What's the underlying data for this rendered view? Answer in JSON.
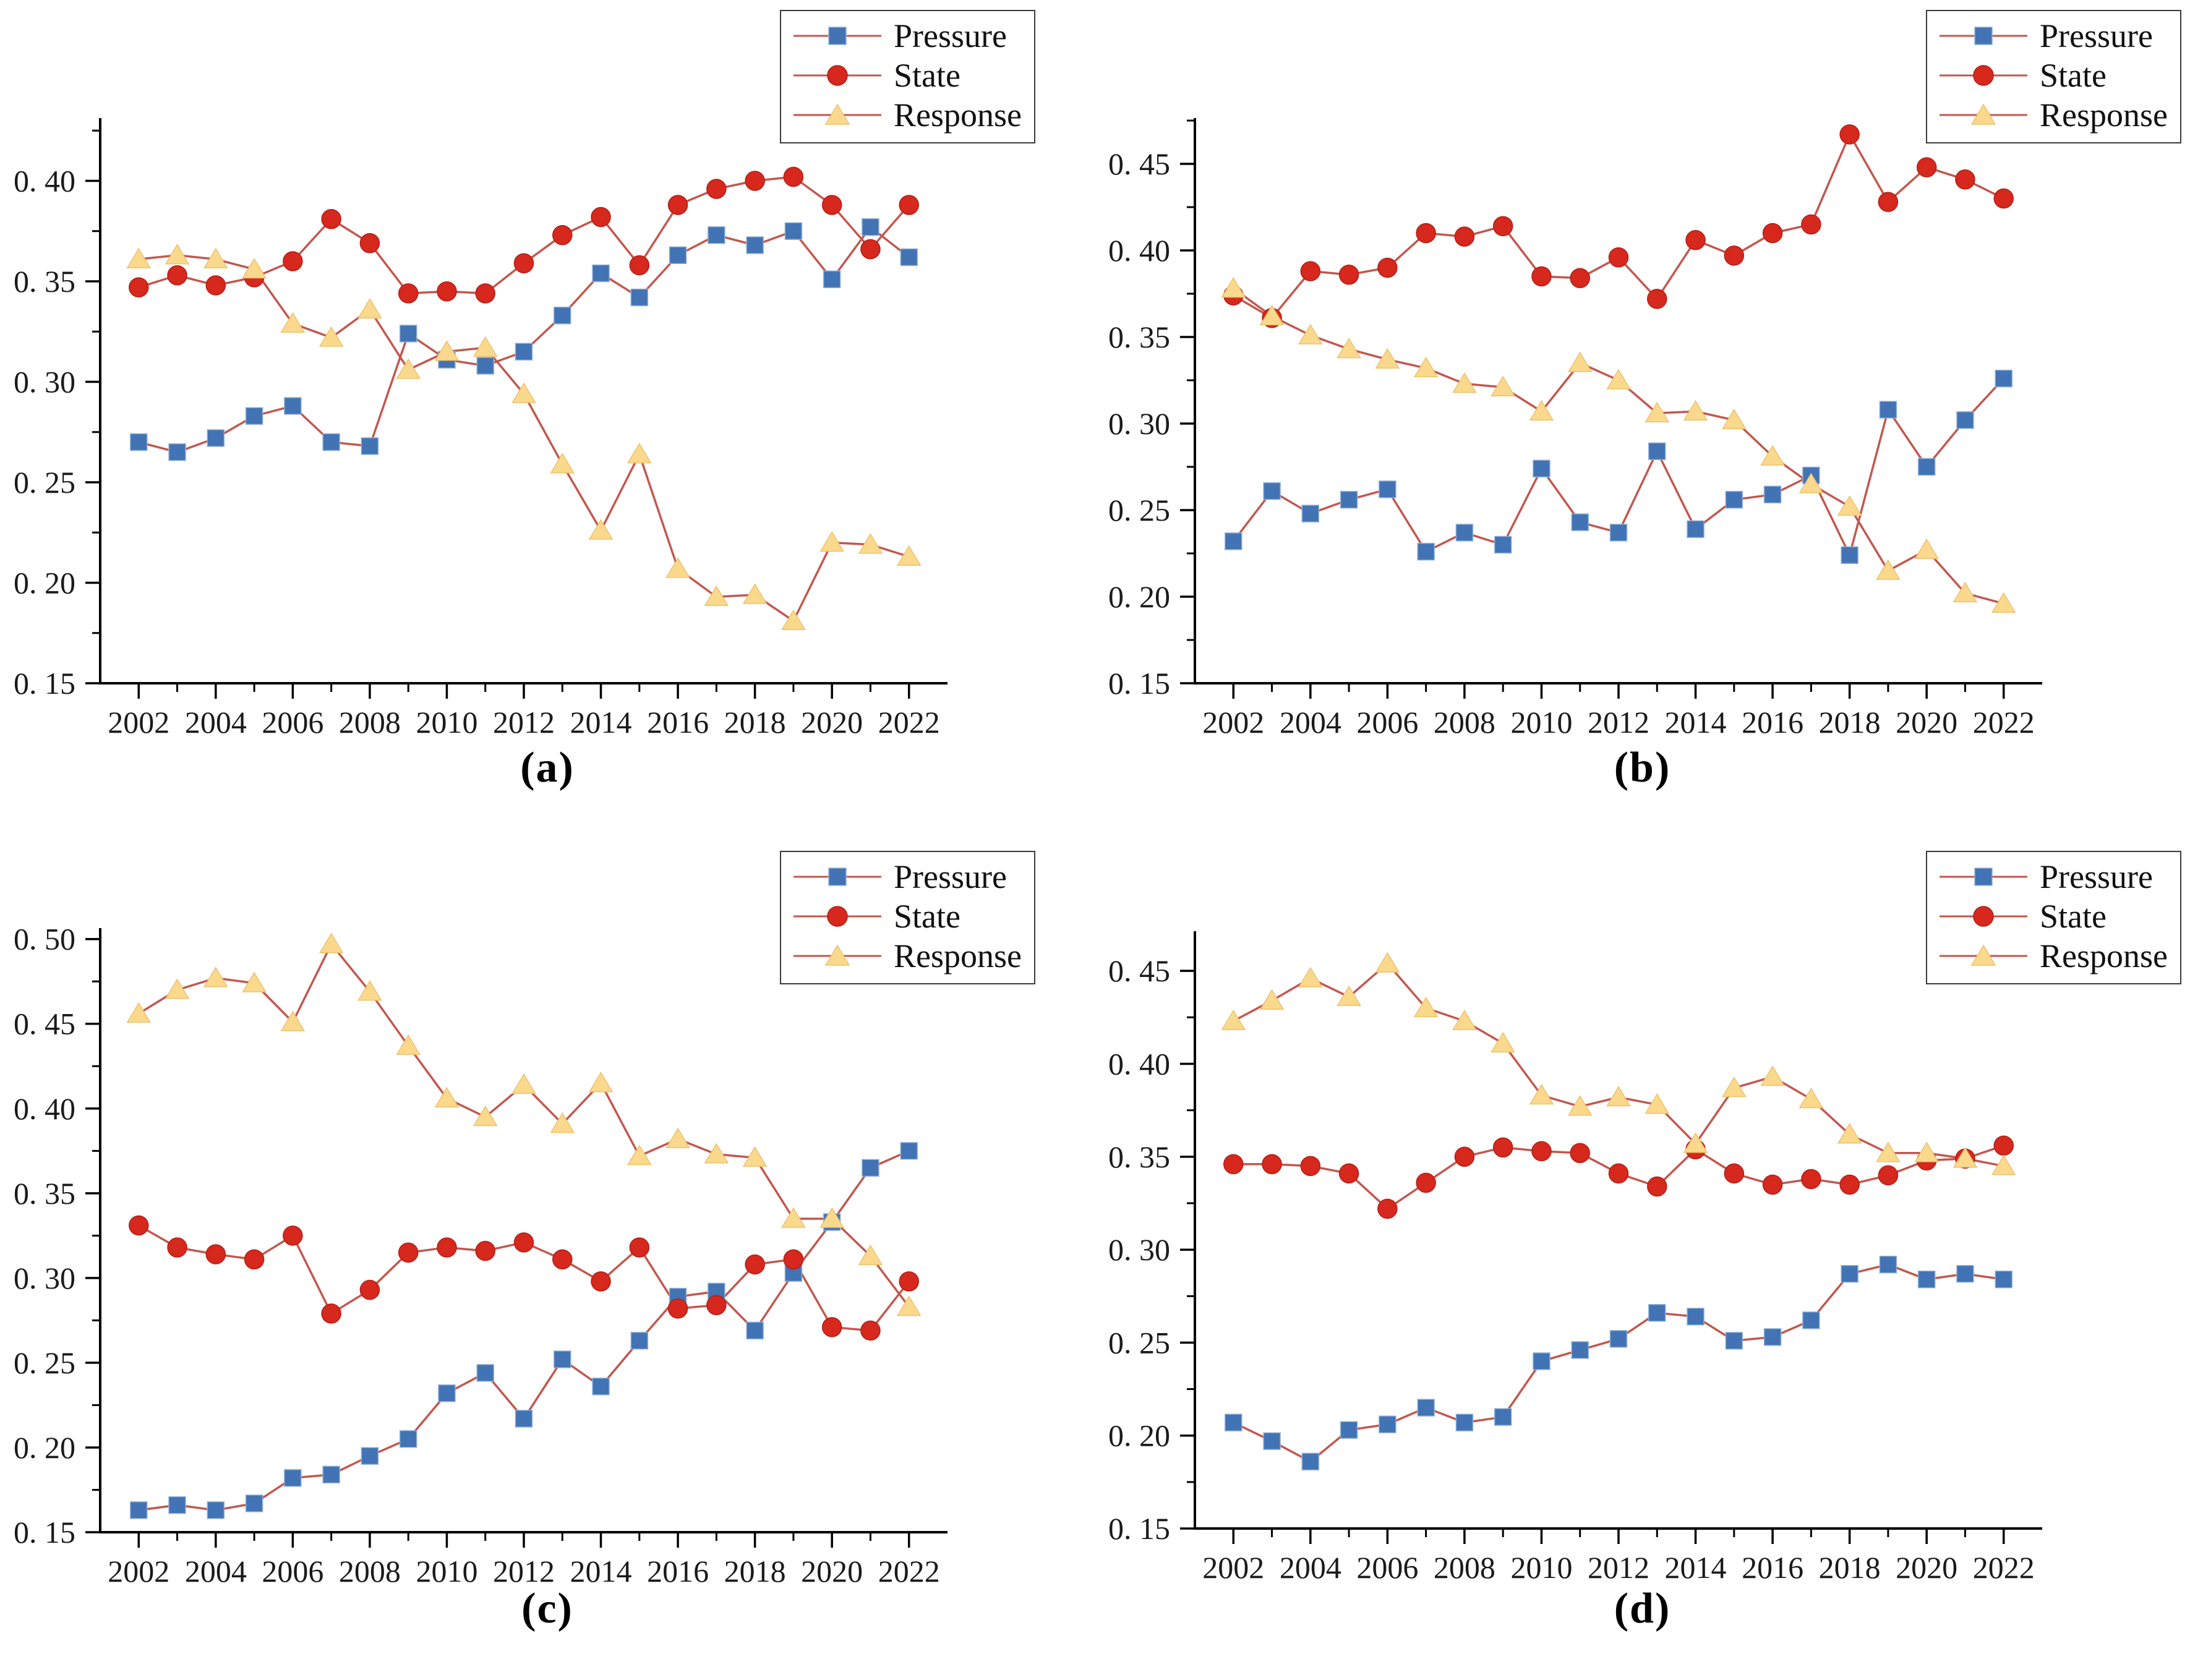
{
  "legend": {
    "items": [
      {
        "label": "Pressure",
        "marker": "square",
        "color": "#4273B4",
        "edge": "#8FAFD6"
      },
      {
        "label": "State",
        "marker": "circle",
        "color": "#D7281E",
        "edge": "#B21E16"
      },
      {
        "label": "Response",
        "marker": "triangle",
        "color": "#FAD98D",
        "edge": "#EDC26E"
      }
    ],
    "line_color": "#C2574E"
  },
  "chart_data": [
    {
      "id": "a",
      "caption": "(a)",
      "type": "line",
      "xlabel": "",
      "ylabel": "",
      "grid": false,
      "legend_position": "upper right",
      "x_years": [
        2002,
        2003,
        2004,
        2005,
        2006,
        2007,
        2008,
        2009,
        2010,
        2011,
        2012,
        2013,
        2014,
        2015,
        2016,
        2017,
        2018,
        2019,
        2020,
        2021,
        2022
      ],
      "xtick_labels": [
        "2002",
        "2004",
        "2006",
        "2008",
        "2010",
        "2012",
        "2014",
        "2016",
        "2018",
        "2020",
        "2022"
      ],
      "ylim": [
        0.15,
        0.43
      ],
      "yticks": [
        0.15,
        0.2,
        0.25,
        0.3,
        0.35,
        0.4
      ],
      "ytick_labels": [
        "0. 15",
        "0. 20",
        "0. 25",
        "0. 30",
        "0. 35",
        "0. 40"
      ],
      "series": [
        {
          "name": "Pressure",
          "marker": "square",
          "values": [
            0.27,
            0.265,
            0.272,
            0.283,
            0.288,
            0.27,
            0.268,
            0.324,
            0.311,
            0.308,
            0.315,
            0.333,
            0.354,
            0.342,
            0.363,
            0.373,
            0.368,
            0.375,
            0.351,
            0.377,
            0.362
          ]
        },
        {
          "name": "State",
          "marker": "circle",
          "values": [
            0.347,
            0.353,
            0.348,
            0.352,
            0.36,
            0.381,
            0.369,
            0.344,
            0.345,
            0.344,
            0.359,
            0.373,
            0.382,
            0.358,
            0.388,
            0.396,
            0.4,
            0.402,
            0.388,
            0.366,
            0.388
          ]
        },
        {
          "name": "Response",
          "marker": "triangle",
          "values": [
            0.361,
            0.363,
            0.361,
            0.356,
            0.329,
            0.322,
            0.336,
            0.306,
            0.315,
            0.317,
            0.294,
            0.259,
            0.226,
            0.264,
            0.207,
            0.193,
            0.194,
            0.181,
            0.22,
            0.219,
            0.213
          ]
        }
      ]
    },
    {
      "id": "b",
      "caption": "(b)",
      "type": "line",
      "xlabel": "",
      "ylabel": "",
      "grid": false,
      "legend_position": "upper right",
      "x_years": [
        2002,
        2003,
        2004,
        2005,
        2006,
        2007,
        2008,
        2009,
        2010,
        2011,
        2012,
        2013,
        2014,
        2015,
        2016,
        2017,
        2018,
        2019,
        2020,
        2021,
        2022
      ],
      "xtick_labels": [
        "2002",
        "2004",
        "2006",
        "2008",
        "2010",
        "2012",
        "2014",
        "2016",
        "2018",
        "2020",
        "2022"
      ],
      "ylim": [
        0.15,
        0.475
      ],
      "yticks": [
        0.15,
        0.2,
        0.25,
        0.3,
        0.35,
        0.4,
        0.45
      ],
      "ytick_labels": [
        "0. 15",
        "0. 20",
        "0. 25",
        "0. 30",
        "0. 35",
        "0. 40",
        "0. 45"
      ],
      "series": [
        {
          "name": "Pressure",
          "marker": "square",
          "values": [
            0.232,
            0.261,
            0.248,
            0.256,
            0.262,
            0.226,
            0.237,
            0.23,
            0.274,
            0.243,
            0.237,
            0.284,
            0.239,
            0.256,
            0.259,
            0.27,
            0.224,
            0.308,
            0.275,
            0.302,
            0.326
          ]
        },
        {
          "name": "State",
          "marker": "circle",
          "values": [
            0.374,
            0.361,
            0.388,
            0.386,
            0.39,
            0.41,
            0.408,
            0.414,
            0.385,
            0.384,
            0.396,
            0.372,
            0.406,
            0.397,
            0.41,
            0.415,
            0.467,
            0.428,
            0.448,
            0.441,
            0.43
          ]
        },
        {
          "name": "Response",
          "marker": "triangle",
          "values": [
            0.378,
            0.362,
            0.351,
            0.343,
            0.337,
            0.332,
            0.323,
            0.321,
            0.307,
            0.335,
            0.325,
            0.306,
            0.307,
            0.302,
            0.281,
            0.265,
            0.252,
            0.215,
            0.227,
            0.202,
            0.196
          ]
        }
      ]
    },
    {
      "id": "c",
      "caption": "(c)",
      "type": "line",
      "xlabel": "",
      "ylabel": "",
      "grid": false,
      "legend_position": "upper right",
      "x_years": [
        2002,
        2003,
        2004,
        2005,
        2006,
        2007,
        2008,
        2009,
        2010,
        2011,
        2012,
        2013,
        2014,
        2015,
        2016,
        2017,
        2018,
        2019,
        2020,
        2021,
        2022
      ],
      "xtick_labels": [
        "2002",
        "2004",
        "2006",
        "2008",
        "2010",
        "2012",
        "2014",
        "2016",
        "2018",
        "2020",
        "2022"
      ],
      "ylim": [
        0.15,
        0.505
      ],
      "yticks": [
        0.15,
        0.2,
        0.25,
        0.3,
        0.35,
        0.4,
        0.45,
        0.5
      ],
      "ytick_labels": [
        "0. 15",
        "0. 20",
        "0. 25",
        "0. 30",
        "0. 35",
        "0. 40",
        "0. 45",
        "0. 50"
      ],
      "series": [
        {
          "name": "Pressure",
          "marker": "square",
          "values": [
            0.163,
            0.166,
            0.163,
            0.167,
            0.182,
            0.184,
            0.195,
            0.205,
            0.232,
            0.244,
            0.217,
            0.252,
            0.236,
            0.263,
            0.289,
            0.292,
            0.269,
            0.303,
            0.333,
            0.365,
            0.375
          ]
        },
        {
          "name": "State",
          "marker": "circle",
          "values": [
            0.331,
            0.318,
            0.314,
            0.311,
            0.325,
            0.279,
            0.293,
            0.315,
            0.318,
            0.316,
            0.321,
            0.311,
            0.298,
            0.318,
            0.282,
            0.284,
            0.308,
            0.311,
            0.271,
            0.269,
            0.298
          ]
        },
        {
          "name": "Response",
          "marker": "triangle",
          "values": [
            0.456,
            0.47,
            0.477,
            0.474,
            0.451,
            0.497,
            0.469,
            0.437,
            0.406,
            0.395,
            0.414,
            0.391,
            0.415,
            0.372,
            0.382,
            0.373,
            0.371,
            0.335,
            0.335,
            0.313,
            0.283
          ]
        }
      ]
    },
    {
      "id": "d",
      "caption": "(d)",
      "type": "line",
      "xlabel": "",
      "ylabel": "",
      "grid": false,
      "legend_position": "upper right",
      "x_years": [
        2002,
        2003,
        2004,
        2005,
        2006,
        2007,
        2008,
        2009,
        2010,
        2011,
        2012,
        2013,
        2014,
        2015,
        2016,
        2017,
        2018,
        2019,
        2020,
        2021,
        2022
      ],
      "xtick_labels": [
        "2002",
        "2004",
        "2006",
        "2008",
        "2010",
        "2012",
        "2014",
        "2016",
        "2018",
        "2020",
        "2022"
      ],
      "ylim": [
        0.15,
        0.47
      ],
      "yticks": [
        0.15,
        0.2,
        0.25,
        0.3,
        0.35,
        0.4,
        0.45
      ],
      "ytick_labels": [
        "0. 15",
        "0. 20",
        "0. 25",
        "0. 30",
        "0. 35",
        "0. 40",
        "0. 45"
      ],
      "series": [
        {
          "name": "Pressure",
          "marker": "square",
          "values": [
            0.207,
            0.197,
            0.186,
            0.203,
            0.206,
            0.215,
            0.207,
            0.21,
            0.24,
            0.246,
            0.252,
            0.266,
            0.264,
            0.251,
            0.253,
            0.262,
            0.287,
            0.292,
            0.284,
            0.287,
            0.284
          ]
        },
        {
          "name": "State",
          "marker": "circle",
          "values": [
            0.346,
            0.346,
            0.345,
            0.341,
            0.322,
            0.336,
            0.35,
            0.355,
            0.353,
            0.352,
            0.341,
            0.334,
            0.354,
            0.341,
            0.335,
            0.338,
            0.335,
            0.34,
            0.348,
            0.349,
            0.356
          ]
        },
        {
          "name": "Response",
          "marker": "triangle",
          "values": [
            0.423,
            0.434,
            0.446,
            0.436,
            0.454,
            0.43,
            0.423,
            0.411,
            0.383,
            0.377,
            0.382,
            0.378,
            0.357,
            0.387,
            0.393,
            0.381,
            0.362,
            0.352,
            0.352,
            0.349,
            0.345
          ]
        }
      ]
    }
  ]
}
